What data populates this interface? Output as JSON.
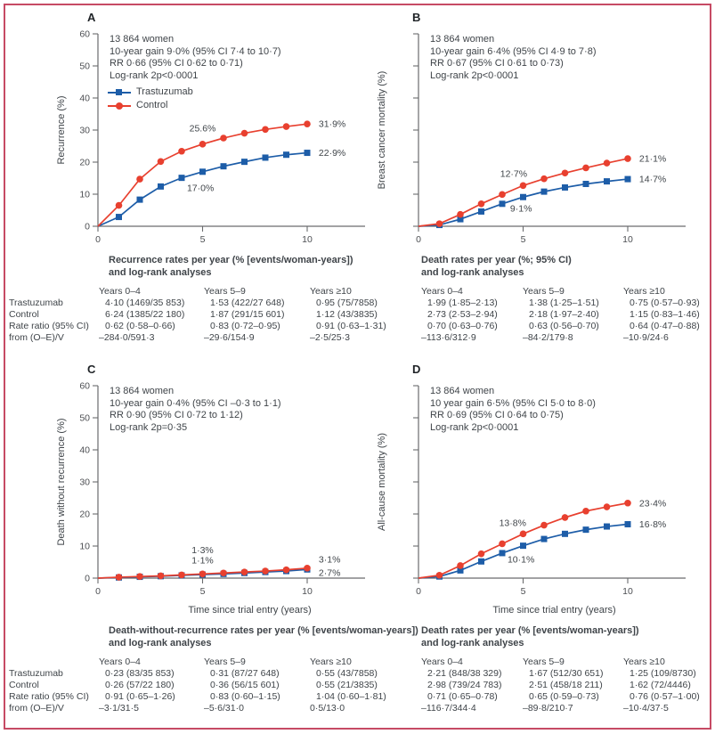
{
  "figure": {
    "colors": {
      "trastuzumab": "#1d5da8",
      "control": "#e8402f",
      "axis": "#6a6b6d",
      "text": "#3f4449",
      "border": "#c64a64"
    },
    "legend": {
      "trastuzumab": "Trastuzumab",
      "control": "Control"
    },
    "row_labels": [
      "Trastuzumab",
      "Control",
      "Rate ratio (95% CI)",
      "from (O–E)/V"
    ],
    "col_headers": [
      "Years 0–4",
      "Years 5–9",
      "Years ≥10"
    ],
    "x_tick_labels": [
      "0",
      "5",
      "10"
    ],
    "y_tick_labels": [
      "0",
      "10",
      "20",
      "30",
      "40",
      "50",
      "60"
    ],
    "x_axis_title": "Time since trial entry (years)"
  },
  "panels": [
    {
      "letter": "A",
      "stats": [
        "13 864 women",
        "10-year gain 9·0% (95% CI 7·4 to 10·7)",
        "RR 0·66 (95% CI 0·62 to 0·71)",
        "Log-rank 2p<0·0001"
      ],
      "caption": [
        "Recurrence rates per year (% [events/woman-years])",
        "and log-rank analyses"
      ],
      "table": [
        [
          "4·10 (1469/35 853)",
          "1·53 (422/27 648)",
          "0·95 (75/7858)"
        ],
        [
          "6·24 (1385/22 180)",
          "1·87 (291/15 601)",
          "1·12 (43/3835)"
        ],
        [
          "0·62 (0·58–0·66)",
          "0·83 (0·72–0·95)",
          "0·91 (0·63–1·31)"
        ],
        [
          "–284·0/591·3",
          "–29·6/154·9",
          "–2·5/25·3"
        ]
      ]
    },
    {
      "letter": "B",
      "stats": [
        "13 864 women",
        "10-year gain 6·4% (95% CI 4·9 to 7·8)",
        "RR 0·67 (95% CI 0·61 to 0·73)",
        "Log-rank 2p<0·0001"
      ],
      "caption": [
        "Death rates per year (%; 95% CI)",
        "and log-rank analyses"
      ],
      "table": [
        [
          "1·99 (1·85–2·13)",
          "1·38 (1·25–1·51)",
          "0·75 (0·57–0·93)"
        ],
        [
          "2·73 (2·53–2·94)",
          "2·18 (1·97–2·40)",
          "1·15 (0·83–1·46)"
        ],
        [
          "0·70 (0·63–0·76)",
          "0·63 (0·56–0·70)",
          "0·64 (0·47–0·88)"
        ],
        [
          "–113·6/312·9",
          "–84·2/179·8",
          "–10·9/24·6"
        ]
      ]
    },
    {
      "letter": "C",
      "stats": [
        "13 864 women",
        "10-year gain 0·4% (95% CI –0·3 to 1·1)",
        "RR 0·90 (95% CI 0·72 to 1·12)",
        "Log-rank 2p=0·35"
      ],
      "caption": [
        "Death-without-recurrence rates per year (% [events/woman-years])",
        "and log-rank analyses"
      ],
      "table": [
        [
          "0·23 (83/35 853)",
          "0·31 (87/27 648)",
          "0·55 (43/7858)"
        ],
        [
          "0·26 (57/22 180)",
          "0·36 (56/15 601)",
          "0·55 (21/3835)"
        ],
        [
          "0·91 (0·65–1·26)",
          "0·83 (0·60–1·15)",
          "1·04 (0·60–1·81)"
        ],
        [
          "–3·1/31·5",
          "–5·6/31·0",
          "0·5/13·0"
        ]
      ]
    },
    {
      "letter": "D",
      "stats": [
        "13 864 women",
        "10 year gain 6·5% (95% CI 5·0 to 8·0)",
        "RR 0·69 (95% CI 0·64 to 0·75)",
        "Log-rank 2p<0·0001"
      ],
      "caption": [
        "Death rates per year (% [events/woman-years])",
        "and log-rank analyses"
      ],
      "table": [
        [
          "2·21 (848/38 329)",
          "1·67 (512/30 651)",
          "1·25 (109/8730)"
        ],
        [
          "2·98 (739/24 783)",
          "2·51 (458/18 211)",
          "1·62 (72/4446)"
        ],
        [
          "0·71 (0·65–0·78)",
          "0·65 (0·59–0·73)",
          "0·76 (0·57–1·00)"
        ],
        [
          "–116·7/344·4",
          "–89·8/210·7",
          "–10·4/37·5"
        ]
      ]
    }
  ],
  "chart_data": [
    {
      "type": "line",
      "panel": "A",
      "ylabel": "Recurrence (%)",
      "xlabel": "",
      "x": [
        0,
        1,
        2,
        3,
        4,
        5,
        6,
        7,
        8,
        9,
        10
      ],
      "xlim": [
        0,
        12.8
      ],
      "ylim": [
        0,
        60
      ],
      "x_ticks": [
        0,
        5,
        10
      ],
      "y_ticks": [
        0,
        10,
        20,
        30,
        40,
        50,
        60
      ],
      "show_y_ticklabels": true,
      "legend_position": "top-left",
      "series": [
        {
          "name": "Trastuzumab",
          "marker": "square",
          "color": "#1d5da8",
          "values": [
            0,
            2.9,
            8.3,
            12.4,
            15.1,
            17.0,
            18.7,
            20.1,
            21.4,
            22.3,
            22.9
          ]
        },
        {
          "name": "Control",
          "marker": "circle",
          "color": "#e8402f",
          "values": [
            0,
            6.5,
            14.7,
            20.2,
            23.4,
            25.6,
            27.5,
            29.0,
            30.2,
            31.1,
            31.9
          ]
        }
      ],
      "annotations": [
        {
          "text": "25.6%",
          "x": 5.0,
          "y": 30.6,
          "anchor": "middle"
        },
        {
          "text": "17·0%",
          "x": 4.9,
          "y": 12.0,
          "anchor": "middle"
        },
        {
          "text": "31·9%",
          "x": 10.55,
          "y": 31.9,
          "anchor": "start"
        },
        {
          "text": "22·9%",
          "x": 10.55,
          "y": 22.9,
          "anchor": "start"
        }
      ]
    },
    {
      "type": "line",
      "panel": "B",
      "ylabel": "Breast cancer mortality (%)",
      "xlabel": "",
      "x": [
        0,
        1,
        2,
        3,
        4,
        5,
        6,
        7,
        8,
        9,
        10
      ],
      "xlim": [
        0,
        12.8
      ],
      "ylim": [
        0,
        60
      ],
      "x_ticks": [
        0,
        5,
        10
      ],
      "y_ticks": [
        0,
        10,
        20,
        30,
        40,
        50,
        60
      ],
      "show_y_ticklabels": false,
      "series": [
        {
          "name": "Trastuzumab",
          "marker": "square",
          "color": "#1d5da8",
          "values": [
            0,
            0.4,
            2.2,
            4.6,
            7.0,
            9.1,
            10.8,
            12.1,
            13.2,
            14.0,
            14.7
          ]
        },
        {
          "name": "Control",
          "marker": "circle",
          "color": "#e8402f",
          "values": [
            0,
            0.8,
            3.7,
            7.0,
            9.9,
            12.7,
            14.8,
            16.6,
            18.2,
            19.7,
            21.1
          ]
        }
      ],
      "annotations": [
        {
          "text": "12·7%",
          "x": 4.55,
          "y": 16.4,
          "anchor": "middle"
        },
        {
          "text": "9·1%",
          "x": 4.9,
          "y": 5.6,
          "anchor": "middle"
        },
        {
          "text": "21·1%",
          "x": 10.55,
          "y": 21.1,
          "anchor": "start"
        },
        {
          "text": "14·7%",
          "x": 10.55,
          "y": 14.7,
          "anchor": "start"
        }
      ]
    },
    {
      "type": "line",
      "panel": "C",
      "ylabel": "Death without recurrence (%)",
      "xlabel": "Time since trial entry (years)",
      "x": [
        0,
        1,
        2,
        3,
        4,
        5,
        6,
        7,
        8,
        9,
        10
      ],
      "xlim": [
        0,
        12.8
      ],
      "ylim": [
        0,
        60
      ],
      "x_ticks": [
        0,
        5,
        10
      ],
      "y_ticks": [
        0,
        10,
        20,
        30,
        40,
        50,
        60
      ],
      "show_y_ticklabels": true,
      "series": [
        {
          "name": "Trastuzumab",
          "marker": "square",
          "color": "#1d5da8",
          "values": [
            0,
            0.2,
            0.4,
            0.6,
            0.85,
            1.1,
            1.3,
            1.6,
            1.9,
            2.2,
            2.7
          ]
        },
        {
          "name": "Control",
          "marker": "circle",
          "color": "#e8402f",
          "values": [
            0,
            0.3,
            0.5,
            0.7,
            1.0,
            1.3,
            1.6,
            1.9,
            2.2,
            2.6,
            3.1
          ]
        }
      ],
      "annotations": [
        {
          "text": "1·3%",
          "x": 5.0,
          "y": 8.8,
          "anchor": "middle"
        },
        {
          "text": "1·1%",
          "x": 5.0,
          "y": 5.6,
          "anchor": "middle"
        },
        {
          "text": "3·1%",
          "x": 10.55,
          "y": 5.8,
          "anchor": "start"
        },
        {
          "text": "2·7%",
          "x": 10.55,
          "y": 1.6,
          "anchor": "start"
        }
      ]
    },
    {
      "type": "line",
      "panel": "D",
      "ylabel": "All-cause mortality (%)",
      "xlabel": "Time since trial entry (years)",
      "x": [
        0,
        1,
        2,
        3,
        4,
        5,
        6,
        7,
        8,
        9,
        10
      ],
      "xlim": [
        0,
        12.8
      ],
      "ylim": [
        0,
        60
      ],
      "x_ticks": [
        0,
        5,
        10
      ],
      "y_ticks": [
        0,
        10,
        20,
        30,
        40,
        50,
        60
      ],
      "show_y_ticklabels": false,
      "series": [
        {
          "name": "Trastuzumab",
          "marker": "square",
          "color": "#1d5da8",
          "values": [
            0,
            0.5,
            2.4,
            5.2,
            7.8,
            10.1,
            12.2,
            13.8,
            15.1,
            16.1,
            16.8
          ]
        },
        {
          "name": "Control",
          "marker": "circle",
          "color": "#e8402f",
          "values": [
            0,
            0.9,
            3.9,
            7.6,
            10.7,
            13.8,
            16.5,
            18.9,
            20.9,
            22.2,
            23.4
          ]
        }
      ],
      "annotations": [
        {
          "text": "13·8%",
          "x": 4.5,
          "y": 17.2,
          "anchor": "middle"
        },
        {
          "text": "10·1%",
          "x": 4.9,
          "y": 5.8,
          "anchor": "middle"
        },
        {
          "text": "23·4%",
          "x": 10.55,
          "y": 23.4,
          "anchor": "start"
        },
        {
          "text": "16·8%",
          "x": 10.55,
          "y": 16.8,
          "anchor": "start"
        }
      ]
    }
  ]
}
